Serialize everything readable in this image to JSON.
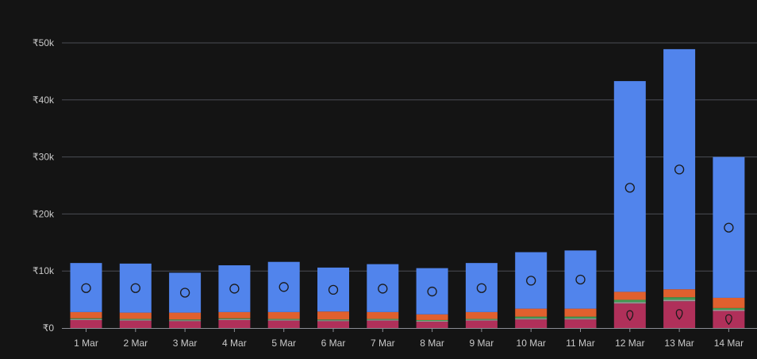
{
  "chart_data": {
    "type": "bar",
    "stacked": true,
    "categories": [
      "1 Mar",
      "2 Mar",
      "3 Mar",
      "4 Mar",
      "5 Mar",
      "6 Mar",
      "7 Mar",
      "8 Mar",
      "9 Mar",
      "10 Mar",
      "11 Mar",
      "12 Mar",
      "13 Mar",
      "14 Mar"
    ],
    "y_ticks": [
      "₹0",
      "₹10k",
      "₹20k",
      "₹30k",
      "₹40k",
      "₹50k"
    ],
    "ylim": [
      0,
      50000
    ],
    "grid": true,
    "series": [
      {
        "color": "#b0305a",
        "values": [
          1400,
          1300,
          1200,
          1400,
          1300,
          1200,
          1300,
          1100,
          1300,
          1500,
          1500,
          4300,
          4700,
          3000
        ]
      },
      {
        "color": "#9a9a9a",
        "values": [
          150,
          150,
          150,
          150,
          150,
          150,
          150,
          150,
          150,
          200,
          200,
          250,
          250,
          200
        ]
      },
      {
        "color": "#3f9a52",
        "values": [
          150,
          150,
          150,
          150,
          150,
          150,
          150,
          150,
          150,
          300,
          300,
          400,
          450,
          300
        ]
      },
      {
        "color": "#e0602e",
        "values": [
          1100,
          1100,
          1200,
          1100,
          1200,
          1400,
          1200,
          1000,
          1200,
          1400,
          1400,
          1400,
          1400,
          1800
        ]
      },
      {
        "color": "#5184ec",
        "values": [
          8600,
          8600,
          7000,
          8200,
          8800,
          7700,
          8400,
          8100,
          8600,
          9900,
          10200,
          36950,
          42100,
          24700
        ]
      }
    ],
    "markers": {
      "circle_values": [
        7000,
        7000,
        6200,
        6900,
        7200,
        6700,
        6900,
        6400,
        7000,
        8300,
        8500,
        24600,
        27800,
        17600
      ],
      "pin_categories": [
        "12 Mar",
        "13 Mar",
        "14 Mar"
      ],
      "pin_values": [
        2200,
        2400,
        1500
      ]
    }
  }
}
